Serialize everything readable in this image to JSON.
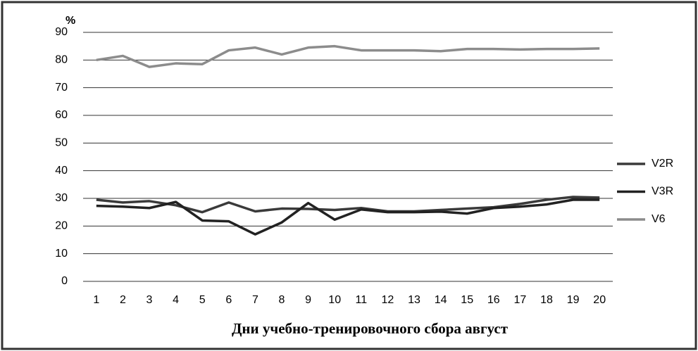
{
  "chart_data": {
    "type": "line",
    "y_label": "%",
    "x_label": "Дни учебно-тренировочного  сбора август",
    "categories": [
      "1",
      "2",
      "3",
      "4",
      "5",
      "6",
      "7",
      "8",
      "9",
      "10",
      "11",
      "12",
      "13",
      "14",
      "15",
      "16",
      "17",
      "18",
      "19",
      "20"
    ],
    "series": [
      {
        "name": "V2R",
        "color": "#3a3a3a",
        "values": [
          29.5,
          28.5,
          29,
          27.5,
          25,
          28.5,
          25.3,
          26.3,
          26.2,
          25.8,
          26.5,
          25.3,
          25.3,
          25.8,
          26.3,
          26.8,
          28,
          29.5,
          30.5,
          30.3
        ]
      },
      {
        "name": "V3R",
        "color": "#222222",
        "values": [
          27.3,
          27,
          26.5,
          28.7,
          22,
          21.7,
          17,
          21.3,
          28.3,
          22.3,
          26,
          25,
          25,
          25.2,
          24.5,
          26.5,
          27,
          27.8,
          29.5,
          29.5
        ]
      },
      {
        "name": "V6",
        "color": "#8c8c8c",
        "values": [
          80,
          81.5,
          77.5,
          78.8,
          78.5,
          83.5,
          84.5,
          82,
          84.5,
          85,
          83.5,
          83.5,
          83.5,
          83.2,
          84,
          84,
          83.8,
          84,
          84,
          84.2
        ]
      }
    ],
    "ylim": [
      0,
      90
    ],
    "yticks": [
      0,
      10,
      20,
      30,
      40,
      50,
      60,
      70,
      80,
      90
    ],
    "grid": true,
    "legend": "right"
  }
}
